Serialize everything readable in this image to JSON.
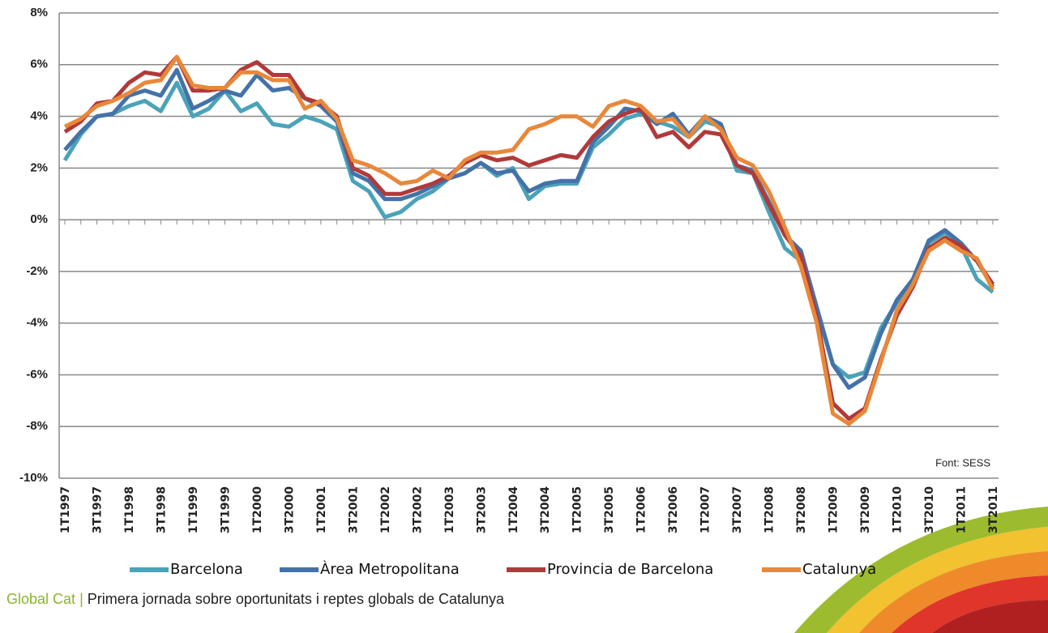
{
  "chart_data": {
    "type": "line",
    "categories": [
      "1T1997",
      null,
      "3T1997",
      null,
      "1T1998",
      null,
      "3T1998",
      null,
      "1T1999",
      null,
      "3T1999",
      null,
      "1T2000",
      null,
      "3T2000",
      null,
      "1T2001",
      null,
      "3T2001",
      null,
      "1T2002",
      null,
      "3T2002",
      null,
      "1T2003",
      null,
      "3T2003",
      null,
      "1T2004",
      null,
      "3T2004",
      null,
      "1T2005",
      null,
      "3T2005",
      null,
      "1T2006",
      null,
      "3T2006",
      null,
      "1T2007",
      null,
      "3T2007",
      null,
      "1T2008",
      null,
      "3T2008",
      null,
      "1T2009",
      null,
      "3T2009",
      null,
      "1T2010",
      null,
      "3T2010",
      null,
      "1T2011",
      null,
      "3T2011"
    ],
    "series": [
      {
        "name": "Barcelona",
        "color": "#4aa3b8",
        "values": [
          2.3,
          3.3,
          4.0,
          4.1,
          4.4,
          4.6,
          4.2,
          5.3,
          4.0,
          4.3,
          5.0,
          4.2,
          4.5,
          3.7,
          3.6,
          4.0,
          3.8,
          3.5,
          1.5,
          1.1,
          0.1,
          0.3,
          0.8,
          1.1,
          1.6,
          1.8,
          2.2,
          1.7,
          2.0,
          0.8,
          1.3,
          1.4,
          1.4,
          2.8,
          3.3,
          3.9,
          4.1,
          3.8,
          3.6,
          3.2,
          3.8,
          3.6,
          1.9,
          1.8,
          0.3,
          -1.1,
          -1.6,
          -3.5,
          -5.6,
          -6.1,
          -5.9,
          -4.2,
          -3.2,
          -2.5,
          -0.9,
          -0.5,
          -1.0,
          -2.3,
          -2.8
        ]
      },
      {
        "name": "Àrea Metropolitana",
        "color": "#4472a8",
        "values": [
          2.7,
          3.4,
          4.0,
          4.1,
          4.8,
          5.0,
          4.8,
          5.8,
          4.3,
          4.6,
          5.0,
          4.8,
          5.6,
          5.0,
          5.1,
          4.7,
          4.4,
          3.8,
          1.8,
          1.5,
          0.8,
          0.8,
          1.0,
          1.3,
          1.6,
          1.8,
          2.2,
          1.8,
          1.9,
          1.1,
          1.4,
          1.5,
          1.5,
          3.0,
          3.6,
          4.3,
          4.2,
          3.7,
          4.1,
          3.3,
          4.0,
          3.7,
          2.1,
          1.9,
          0.7,
          -0.6,
          -1.2,
          -3.4,
          -5.6,
          -6.5,
          -6.1,
          -4.4,
          -3.1,
          -2.3,
          -0.8,
          -0.4,
          -0.9,
          -1.6,
          -2.6
        ]
      },
      {
        "name": "Provincia de Barcelona",
        "color": "#b03a3a",
        "values": [
          3.4,
          3.8,
          4.5,
          4.6,
          5.3,
          5.7,
          5.6,
          6.3,
          5.0,
          5.0,
          5.1,
          5.8,
          6.1,
          5.6,
          5.6,
          4.7,
          4.5,
          4.0,
          2.0,
          1.7,
          1.0,
          1.0,
          1.2,
          1.4,
          1.7,
          2.2,
          2.5,
          2.3,
          2.4,
          2.1,
          2.3,
          2.5,
          2.4,
          3.2,
          3.8,
          4.1,
          4.3,
          3.2,
          3.4,
          2.8,
          3.4,
          3.3,
          2.1,
          1.8,
          0.6,
          -0.6,
          -1.4,
          -3.8,
          -7.1,
          -7.7,
          -7.3,
          -5.4,
          -3.7,
          -2.6,
          -1.1,
          -0.7,
          -1.0,
          -1.6,
          -2.5
        ]
      },
      {
        "name": "Catalunya",
        "color": "#e8883a",
        "values": [
          3.6,
          3.9,
          4.4,
          4.6,
          4.9,
          5.3,
          5.4,
          6.3,
          5.2,
          5.1,
          5.1,
          5.7,
          5.7,
          5.4,
          5.4,
          4.3,
          4.6,
          3.9,
          2.3,
          2.1,
          1.8,
          1.4,
          1.5,
          1.9,
          1.6,
          2.3,
          2.6,
          2.6,
          2.7,
          3.5,
          3.7,
          4.0,
          4.0,
          3.6,
          4.4,
          4.6,
          4.4,
          3.8,
          3.9,
          3.2,
          4.0,
          3.5,
          2.4,
          2.1,
          1.1,
          -0.3,
          -1.8,
          -4.0,
          -7.5,
          -7.9,
          -7.4,
          -5.5,
          -3.5,
          -2.5,
          -1.2,
          -0.8,
          -1.2,
          -1.5,
          -2.7
        ]
      }
    ],
    "ylim": [
      -10,
      8
    ],
    "yticks": [
      {
        "value": -10,
        "label": "-10%"
      },
      {
        "value": -8,
        "label": "-8%"
      },
      {
        "value": -6,
        "label": "-6%"
      },
      {
        "value": -4,
        "label": "-4%"
      },
      {
        "value": -2,
        "label": "-2%"
      },
      {
        "value": 0,
        "label": "0%"
      },
      {
        "value": 2,
        "label": "2%"
      },
      {
        "value": 4,
        "label": "4%"
      },
      {
        "value": 6,
        "label": "6%"
      },
      {
        "value": 8,
        "label": "8%"
      }
    ],
    "grid": true,
    "legend": "bottom",
    "annotation": "Font: SESS"
  },
  "footer": {
    "brand": "Global Cat",
    "separator": "|",
    "text": "Primera jornada sobre oportunitats i reptes globals de Catalunya"
  }
}
